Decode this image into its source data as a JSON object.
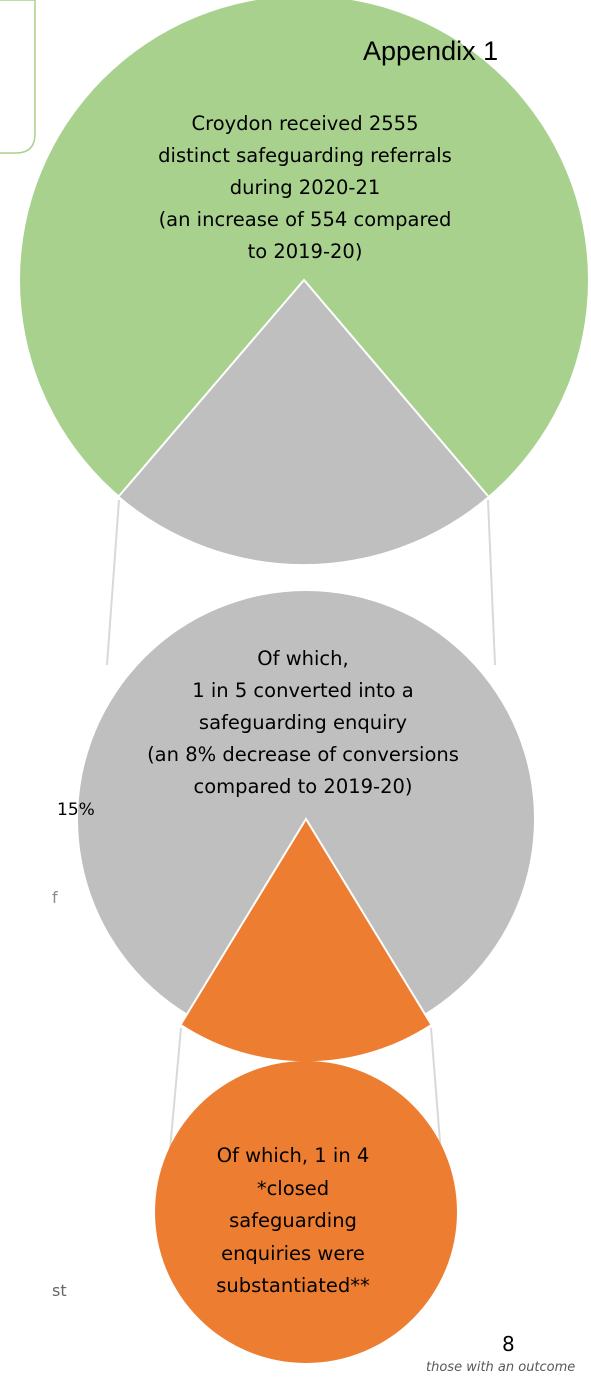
{
  "appendix_label": "Appendix 1",
  "colors": {
    "green": "#a9d18e",
    "grey": "#bfbfbf",
    "orange": "#ed7d31",
    "connector": "#d9d9d9",
    "box_border": "#a9d18e"
  },
  "stages": [
    {
      "lines": [
        "Croydon received 2555",
        "distinct safeguarding referrals",
        "during 2020-21",
        "(an increase of 554 compared",
        "to 2019-20)"
      ]
    },
    {
      "lines": [
        "Of which,",
        "1 in 5 converted into a",
        "safeguarding enquiry",
        "(an 8% decrease of conversions",
        "compared to 2019-20)"
      ]
    },
    {
      "lines": [
        "Of which, 1 in 4",
        "*closed",
        "safeguarding",
        "enquiries were",
        "substantiated**"
      ]
    }
  ],
  "side_fragments": {
    "percent": "15%",
    "fragment_a": "f",
    "fragment_b": "st"
  },
  "page_number": "8",
  "footnote": "those with an outcome"
}
